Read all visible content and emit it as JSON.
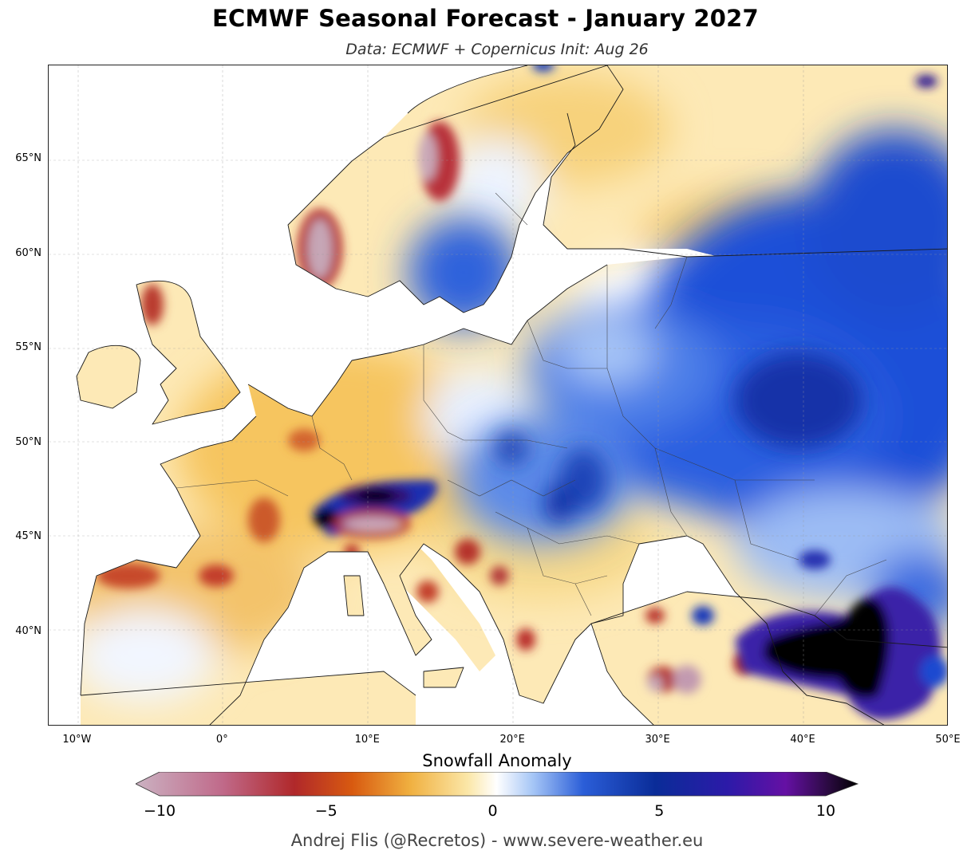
{
  "title": "ECMWF Seasonal Forecast - January 2027",
  "subtitle": "Data: ECMWF + Copernicus   Init: Aug 26",
  "map": {
    "lat_labels": [
      "65°N",
      "60°N",
      "55°N",
      "50°N",
      "45°N",
      "40°N"
    ],
    "lon_labels": [
      "10°W",
      "0°",
      "10°E",
      "20°E",
      "30°E",
      "40°E",
      "50°E"
    ],
    "lat_values": [
      65,
      60,
      55,
      50,
      45,
      40
    ],
    "lon_values": [
      -10,
      0,
      10,
      20,
      30,
      40,
      50
    ],
    "lon_range": [
      -12,
      50
    ],
    "lat_range": [
      35,
      70
    ]
  },
  "colorbar": {
    "label": "Snowfall Anomaly",
    "ticks": [
      "−10",
      "−5",
      "0",
      "5",
      "10"
    ],
    "tick_values": [
      -10,
      -5,
      0,
      5,
      10
    ],
    "range": [
      -10,
      10
    ],
    "colors": {
      "min": "#c8a8b8",
      "neg_mid": "#b8201a",
      "neg_low": "#f0b040",
      "zero": "#ffffff",
      "pos_low": "#80b0f0",
      "pos_mid": "#0038b0",
      "pos_high": "#6010a0",
      "max": "#000000"
    }
  },
  "credit": "Andrej Flis (@Recretos) - www.severe-weather.eu"
}
